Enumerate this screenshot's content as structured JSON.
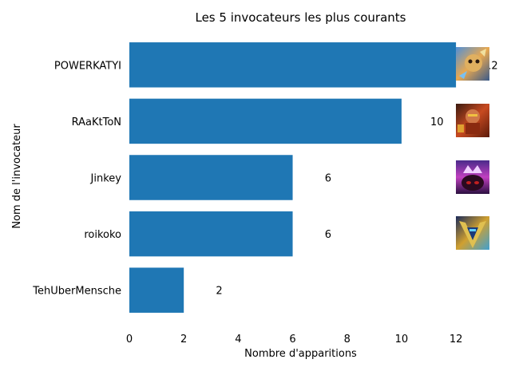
{
  "chart_data": {
    "type": "bar",
    "orientation": "horizontal",
    "title": "Les 5 invocateurs les plus courants",
    "xlabel": "Nombre d'apparitions",
    "ylabel": "Nom de l'invocateur",
    "categories": [
      "POWERKATYI",
      "RAaKtToN",
      "Jinkey",
      "roikoko",
      "TehUberMensche"
    ],
    "values": [
      12,
      10,
      6,
      6,
      2
    ],
    "value_labels": [
      "12",
      "10",
      "6",
      "6",
      "2"
    ],
    "xlim": [
      0,
      13.2
    ],
    "xticks": [
      0,
      2,
      4,
      6,
      8,
      10,
      12
    ],
    "bar_color": "#1f77b4",
    "grid": false,
    "legend": "none",
    "icons": [
      "champion-portrait-icon",
      "champion-portrait-icon",
      "champion-portrait-icon",
      "champion-portrait-icon",
      null
    ]
  }
}
